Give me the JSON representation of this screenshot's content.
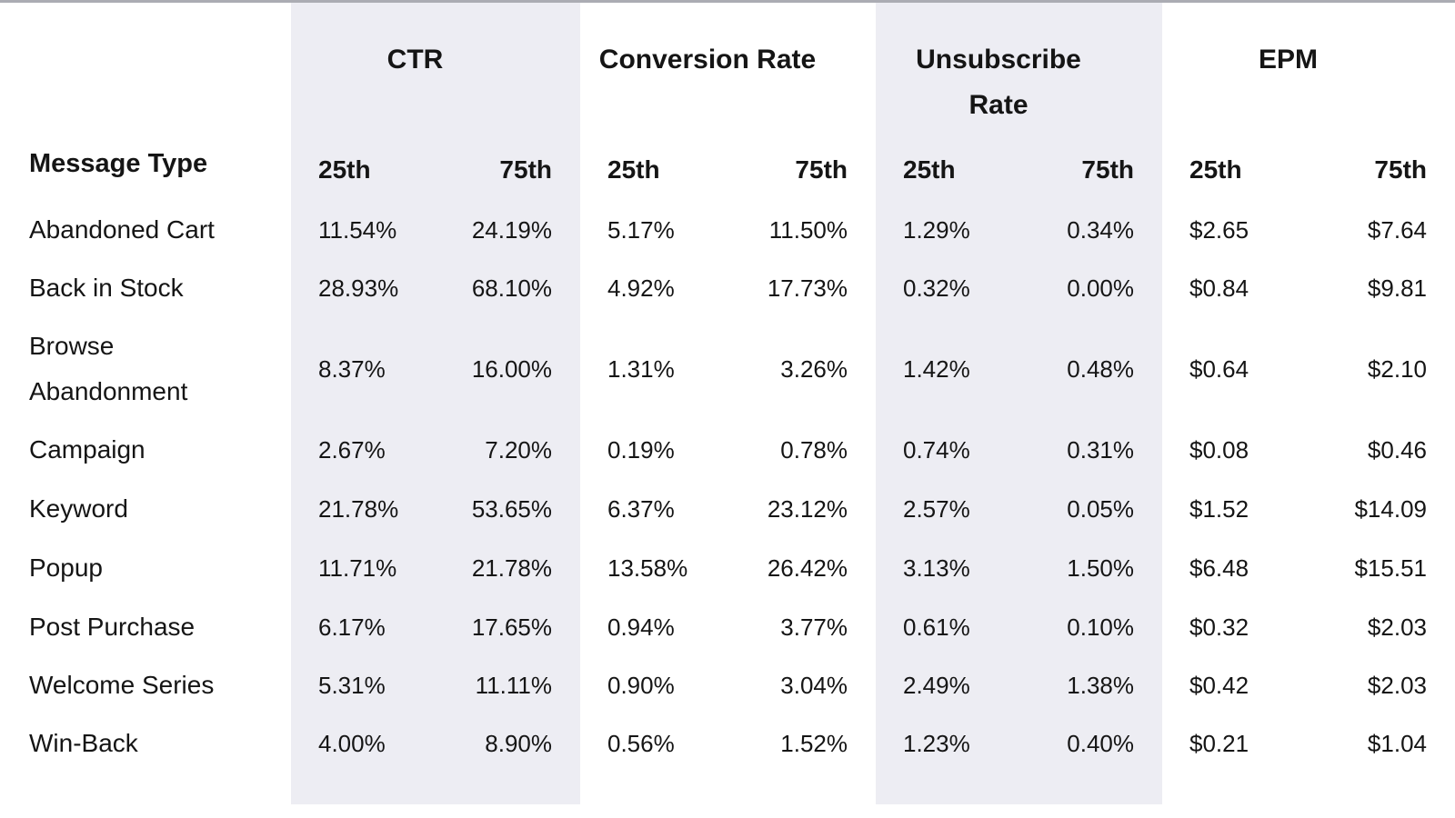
{
  "chart_data": {
    "type": "table",
    "row_header": "Message Type",
    "column_groups": [
      {
        "label": "CTR"
      },
      {
        "label": "Conversion Rate"
      },
      {
        "label": "Unsubscribe Rate"
      },
      {
        "label": "EPM"
      }
    ],
    "sub_columns": [
      "25th",
      "75th"
    ],
    "rows": [
      {
        "label": "Abandoned Cart",
        "values": [
          "11.54%",
          "24.19%",
          "5.17%",
          "11.50%",
          "1.29%",
          "0.34%",
          "$2.65",
          "$7.64"
        ]
      },
      {
        "label": "Back in Stock",
        "values": [
          "28.93%",
          "68.10%",
          "4.92%",
          "17.73%",
          "0.32%",
          "0.00%",
          "$0.84",
          "$9.81"
        ]
      },
      {
        "label": "Browse Abandonment",
        "values": [
          "8.37%",
          "16.00%",
          "1.31%",
          "3.26%",
          "1.42%",
          "0.48%",
          "$0.64",
          "$2.10"
        ]
      },
      {
        "label": "Campaign",
        "values": [
          "2.67%",
          "7.20%",
          "0.19%",
          "0.78%",
          "0.74%",
          "0.31%",
          "$0.08",
          "$0.46"
        ]
      },
      {
        "label": "Keyword",
        "values": [
          "21.78%",
          "53.65%",
          "6.37%",
          "23.12%",
          "2.57%",
          "0.05%",
          "$1.52",
          "$14.09"
        ]
      },
      {
        "label": "Popup",
        "values": [
          "11.71%",
          "21.78%",
          "13.58%",
          "26.42%",
          "3.13%",
          "1.50%",
          "$6.48",
          "$15.51"
        ]
      },
      {
        "label": "Post Purchase",
        "values": [
          "6.17%",
          "17.65%",
          "0.94%",
          "3.77%",
          "0.61%",
          "0.10%",
          "$0.32",
          "$2.03"
        ]
      },
      {
        "label": "Welcome Series",
        "values": [
          "5.31%",
          "11.11%",
          "0.90%",
          "3.04%",
          "2.49%",
          "1.38%",
          "$0.42",
          "$2.03"
        ]
      },
      {
        "label": "Win-Back",
        "values": [
          "4.00%",
          "8.90%",
          "0.56%",
          "1.52%",
          "1.23%",
          "0.40%",
          "$0.21",
          "$1.04"
        ]
      }
    ],
    "layout": {
      "shaded_groups": [
        "CTR",
        "Unsubscribe Rate"
      ],
      "grid": "off"
    },
    "colors": {
      "shaded_column_bg": "#EDEDF3",
      "text": "#151515",
      "top_rule": "#abacb3",
      "background": "#ffffff"
    }
  }
}
